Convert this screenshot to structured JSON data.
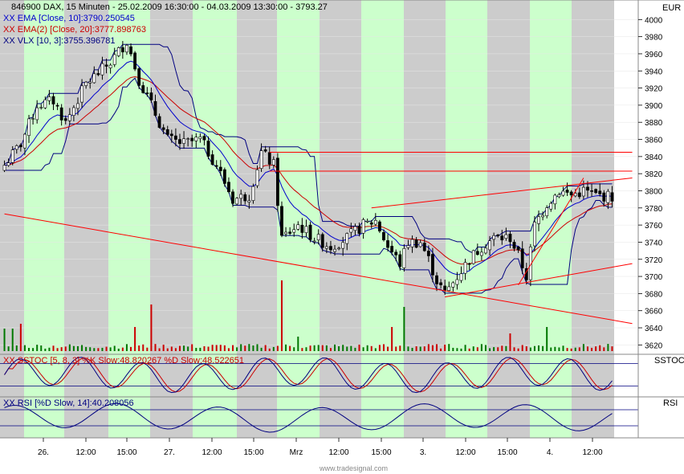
{
  "header": {
    "symbol_line": "846900  DAX, 15 Minuten - 25.02.2009 16:30:00 - 04.03.2009 13:30:00 - 3793.27",
    "ema10_line": "XX EMA [Close, 10]:3790.250545",
    "ema20_line": "XX EMA(2) [Close, 20]:3777.898763",
    "vlx_line": "XX VLX [10, 3]:3755.396781",
    "currency": "EUR"
  },
  "indicators": {
    "sstoc_line": "XX SSTOC [5, 8, 3] %K Slow:48.820267 %D Slow:48.522651",
    "sstoc_name": "SSTOC",
    "rsi_line": "XX RSI [%D Slow, 14]:40.208056",
    "rsi_name": "RSI"
  },
  "watermark": "www.tradesignal.com",
  "colors": {
    "candle": "#000000",
    "ema10": "#0000cc",
    "ema20": "#cc0000",
    "vlx": "#000080",
    "trendline": "#ff0000",
    "volume_up": "#007700",
    "volume_down": "#cc0000",
    "session_band": "#ccffcc",
    "off_band": "#cccccc",
    "oscillator": "#000080"
  },
  "chart_data": {
    "type": "candlestick",
    "y_axis": {
      "range": [
        3610,
        4020
      ],
      "ticks": [
        4000,
        3980,
        3960,
        3940,
        3920,
        3900,
        3880,
        3860,
        3840,
        3820,
        3800,
        3780,
        3760,
        3740,
        3720,
        3700,
        3680,
        3660,
        3640,
        3620
      ]
    },
    "x_axis": {
      "labels": [
        "26.",
        "12:00",
        "15:00",
        "27.",
        "12:00",
        "15:00",
        "Mrz",
        "12:00",
        "15:00",
        "3.",
        "12:00",
        "15:00",
        "4.",
        "12:00"
      ]
    },
    "bars": 150,
    "close_anchors": [
      [
        0,
        3830
      ],
      [
        4,
        3855
      ],
      [
        8,
        3900
      ],
      [
        12,
        3905
      ],
      [
        15,
        3880
      ],
      [
        20,
        3925
      ],
      [
        26,
        3950
      ],
      [
        30,
        3975
      ],
      [
        33,
        3930
      ],
      [
        36,
        3900
      ],
      [
        40,
        3860
      ],
      [
        44,
        3855
      ],
      [
        48,
        3860
      ],
      [
        52,
        3830
      ],
      [
        56,
        3790
      ],
      [
        60,
        3795
      ],
      [
        63,
        3845
      ],
      [
        66,
        3830
      ],
      [
        68,
        3745
      ],
      [
        72,
        3760
      ],
      [
        76,
        3745
      ],
      [
        80,
        3735
      ],
      [
        84,
        3745
      ],
      [
        88,
        3760
      ],
      [
        91,
        3765
      ],
      [
        94,
        3735
      ],
      [
        97,
        3715
      ],
      [
        99,
        3740
      ],
      [
        102,
        3740
      ],
      [
        104,
        3720
      ],
      [
        106,
        3695
      ],
      [
        108,
        3680
      ],
      [
        111,
        3700
      ],
      [
        114,
        3720
      ],
      [
        117,
        3735
      ],
      [
        120,
        3745
      ],
      [
        124,
        3745
      ],
      [
        126,
        3725
      ],
      [
        128,
        3700
      ],
      [
        130,
        3760
      ],
      [
        133,
        3785
      ],
      [
        136,
        3800
      ],
      [
        139,
        3795
      ],
      [
        142,
        3800
      ],
      [
        145,
        3795
      ],
      [
        149,
        3793
      ]
    ],
    "trendlines": [
      {
        "from": [
          0,
          3773
        ],
        "to": [
          150,
          3645
        ]
      },
      {
        "from": [
          65,
          3845
        ],
        "to": [
          150,
          3845
        ]
      },
      {
        "from": [
          65,
          3823
        ],
        "to": [
          150,
          3823
        ]
      },
      {
        "from": [
          90,
          3780
        ],
        "to": [
          150,
          3815
        ]
      },
      {
        "from": [
          108,
          3676
        ],
        "to": [
          150,
          3715
        ]
      },
      {
        "from": [
          126,
          3690
        ],
        "to": [
          142,
          3815
        ]
      }
    ],
    "series": [
      {
        "name": "EMA [Close, 10]",
        "last": 3790.250545
      },
      {
        "name": "EMA(2) [Close, 20]",
        "last": 3777.898763
      },
      {
        "name": "VLX [10, 3]",
        "last": 3755.396781
      }
    ],
    "oscillators": [
      {
        "name": "SSTOC [5, 8, 3]",
        "k_slow": 48.820267,
        "d_slow": 48.522651,
        "levels": [
          80,
          20
        ]
      },
      {
        "name": "RSI [%D Slow, 14]",
        "value": 40.208056,
        "levels": [
          70,
          30
        ]
      }
    ]
  }
}
